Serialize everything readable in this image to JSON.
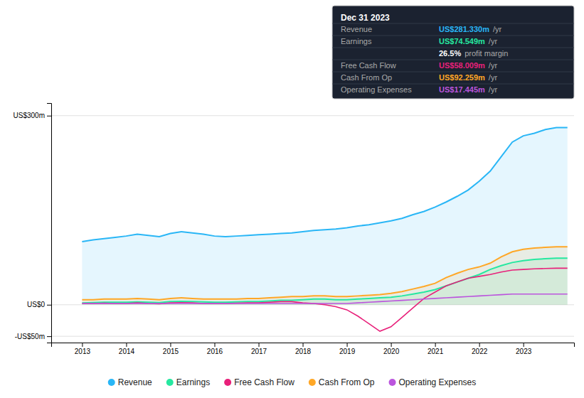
{
  "chart_data": {
    "type": "line",
    "x": [
      2013,
      2013.25,
      2013.5,
      2013.75,
      2014,
      2014.25,
      2014.5,
      2014.75,
      2015,
      2015.25,
      2015.5,
      2015.75,
      2016,
      2016.25,
      2016.5,
      2016.75,
      2017,
      2017.25,
      2017.5,
      2017.75,
      2018,
      2018.25,
      2018.5,
      2018.75,
      2019,
      2019.25,
      2019.5,
      2019.75,
      2020,
      2020.25,
      2020.5,
      2020.75,
      2021,
      2021.25,
      2021.5,
      2021.75,
      2022,
      2022.25,
      2022.5,
      2022.75,
      2023,
      2023.25,
      2023.5,
      2023.75,
      2024
    ],
    "series": [
      {
        "name": "Revenue",
        "type": "area",
        "color": "#29b6f6",
        "values": [
          100,
          103,
          105,
          107,
          109,
          112,
          110,
          108,
          113,
          116,
          114,
          112,
          109,
          108,
          109,
          110,
          111,
          112,
          113,
          114,
          116,
          118,
          119,
          120,
          122,
          125,
          127,
          130,
          133,
          137,
          143,
          148,
          155,
          163,
          172,
          182,
          196,
          212,
          235,
          258,
          268,
          272,
          278,
          281,
          281
        ]
      },
      {
        "name": "Earnings",
        "type": "area",
        "color": "#26e8a0",
        "values": [
          3,
          3.5,
          4,
          4,
          4,
          4.5,
          4,
          3.5,
          5,
          5.5,
          5,
          4.5,
          4,
          4,
          4.5,
          5,
          5,
          6,
          7,
          7,
          8,
          9,
          9,
          8,
          8,
          9,
          10,
          11,
          12,
          14,
          17,
          20,
          24,
          30,
          36,
          42,
          48,
          56,
          62,
          67,
          70,
          72,
          73,
          74,
          74
        ]
      },
      {
        "name": "Free Cash Flow",
        "type": "line",
        "color": "#e8207a",
        "values": [
          2,
          2,
          2.5,
          2,
          2,
          3,
          2,
          1.5,
          3,
          3.5,
          3,
          2,
          2,
          2,
          2.5,
          3,
          3,
          4,
          5,
          5,
          3,
          2,
          0,
          -3,
          -8,
          -18,
          -30,
          -42,
          -35,
          -20,
          -5,
          10,
          20,
          30,
          36,
          42,
          45,
          48,
          52,
          55,
          56,
          57,
          57.5,
          58,
          58
        ]
      },
      {
        "name": "Cash From Op",
        "type": "area",
        "color": "#ffa726",
        "values": [
          8,
          8,
          9,
          9,
          9,
          10,
          9,
          8,
          10,
          11,
          10,
          9,
          9,
          9,
          9,
          10,
          10,
          11,
          12,
          13,
          13,
          14,
          14,
          13,
          13,
          14,
          15,
          16,
          18,
          21,
          25,
          29,
          34,
          43,
          50,
          56,
          60,
          66,
          76,
          84,
          88,
          90,
          91,
          92,
          92
        ]
      },
      {
        "name": "Operating Expenses",
        "type": "line",
        "color": "#bb55dd",
        "values": [
          2,
          2,
          2,
          2,
          2,
          2,
          2,
          2,
          2,
          2,
          2,
          2,
          2,
          2,
          2,
          2,
          2,
          2,
          2,
          2,
          2,
          2,
          2,
          2,
          2,
          3,
          4,
          5,
          6,
          7,
          8,
          9,
          10,
          11,
          12,
          13,
          14,
          15,
          16,
          17,
          17,
          17,
          17,
          17,
          17
        ]
      }
    ],
    "xlim": [
      2012.3,
      2024.15
    ],
    "xticks": [
      2013,
      2014,
      2015,
      2016,
      2017,
      2018,
      2019,
      2020,
      2021,
      2022,
      2023
    ],
    "ylim": [
      -60,
      320
    ],
    "yticks": [
      {
        "value": -50,
        "label": "-US$50m"
      },
      {
        "value": 0,
        "label": "US$0"
      },
      {
        "value": 300,
        "label": "US$300m"
      }
    ],
    "grid": true,
    "legend": "bottom",
    "info_box": {
      "title": "Dec 31 2023",
      "rows": [
        {
          "label": "Revenue",
          "value": "US$281.330m",
          "suffix": "/yr",
          "color": "#29b6f6"
        },
        {
          "label": "Earnings",
          "value": "US$74.549m",
          "suffix": "/yr",
          "color": "#26e8a0"
        },
        {
          "value": "26.5%",
          "suffix": "profit margin",
          "color": "#ffffff"
        },
        {
          "label": "Free Cash Flow",
          "value": "US$58.009m",
          "suffix": "/yr",
          "color": "#e8207a"
        },
        {
          "label": "Cash From Op",
          "value": "US$92.259m",
          "suffix": "/yr",
          "color": "#ffa726"
        },
        {
          "label": "Operating Expenses",
          "value": "US$17.445m",
          "suffix": "/yr",
          "color": "#bb55dd"
        }
      ]
    }
  }
}
